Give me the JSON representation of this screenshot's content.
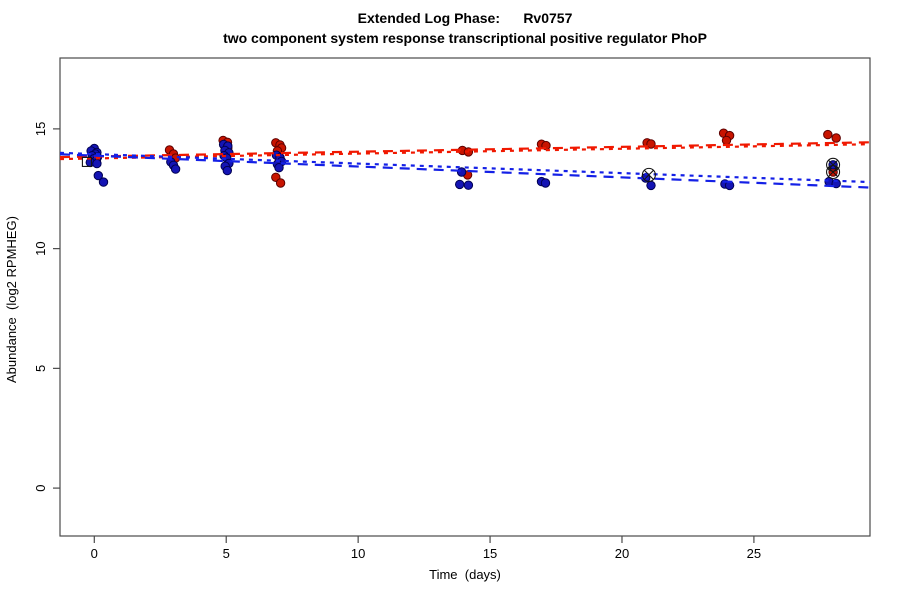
{
  "header": {
    "title_line1": "Extended Log Phase:      Rv0757",
    "title_line2": "two component system response transcriptional positive regulator PhoP"
  },
  "chart_data": {
    "type": "scatter",
    "title": "Extended Log Phase: Rv0757",
    "subtitle": "two component system response transcriptional positive regulator PhoP",
    "xlabel": "Time  (days)",
    "ylabel": "Abundance  (log2 RPMHEG)",
    "xlim": [
      -1.3,
      29.4
    ],
    "ylim": [
      -2.0,
      17.96
    ],
    "x_ticks": [
      0,
      5,
      10,
      15,
      20,
      25
    ],
    "y_ticks": [
      0,
      5,
      10,
      15
    ],
    "grid": "off",
    "legend": "none",
    "colors": {
      "red_fill": "#c81400",
      "red_edge": "#5c0000",
      "blue_fill": "#1414b4",
      "blue_edge": "#000050",
      "red_line": "#f01800",
      "blue_line": "#1420e6",
      "outlier_stroke": "#141414",
      "box": "#4a4a4a"
    },
    "series": [
      {
        "name": "condition-red",
        "marker": "circle",
        "color_key": "red",
        "points": [
          [
            2.85,
            14.12
          ],
          [
            3.0,
            13.95
          ],
          [
            3.08,
            13.78
          ],
          [
            4.88,
            14.52
          ],
          [
            5.05,
            14.44
          ],
          [
            4.94,
            14.3
          ],
          [
            5.06,
            14.2
          ],
          [
            6.88,
            14.42
          ],
          [
            7.04,
            14.33
          ],
          [
            7.1,
            14.2
          ],
          [
            6.94,
            14.08
          ],
          [
            7.0,
            13.62
          ],
          [
            6.88,
            12.98
          ],
          [
            7.06,
            12.74
          ],
          [
            13.95,
            14.1
          ],
          [
            14.18,
            14.04
          ],
          [
            14.15,
            13.08
          ],
          [
            16.95,
            14.36
          ],
          [
            17.12,
            14.3
          ],
          [
            20.95,
            14.42
          ],
          [
            21.1,
            14.37
          ],
          [
            23.85,
            14.82
          ],
          [
            24.08,
            14.72
          ],
          [
            23.96,
            14.52
          ],
          [
            27.8,
            14.76
          ],
          [
            28.12,
            14.62
          ],
          [
            28.0,
            13.2
          ]
        ]
      },
      {
        "name": "condition-blue",
        "marker": "circle",
        "color_key": "blue",
        "points": [
          [
            0.0,
            14.18
          ],
          [
            -0.12,
            14.08
          ],
          [
            0.1,
            14.02
          ],
          [
            0.04,
            13.95
          ],
          [
            -0.08,
            13.88
          ],
          [
            0.12,
            13.82
          ],
          [
            -0.02,
            13.75
          ],
          [
            0.08,
            13.68
          ],
          [
            -0.15,
            13.6
          ],
          [
            0.1,
            13.55
          ],
          [
            0.15,
            13.05
          ],
          [
            0.35,
            12.78
          ],
          [
            2.9,
            13.62
          ],
          [
            3.0,
            13.48
          ],
          [
            3.08,
            13.32
          ],
          [
            4.9,
            14.35
          ],
          [
            5.06,
            14.28
          ],
          [
            4.95,
            14.1
          ],
          [
            5.1,
            14.0
          ],
          [
            4.92,
            13.88
          ],
          [
            5.02,
            13.78
          ],
          [
            5.1,
            13.56
          ],
          [
            4.96,
            13.44
          ],
          [
            5.04,
            13.26
          ],
          [
            6.9,
            13.9
          ],
          [
            7.04,
            13.8
          ],
          [
            7.1,
            13.64
          ],
          [
            6.94,
            13.52
          ],
          [
            7.0,
            13.38
          ],
          [
            13.92,
            13.2
          ],
          [
            13.85,
            12.68
          ],
          [
            14.18,
            12.65
          ],
          [
            16.95,
            12.8
          ],
          [
            17.1,
            12.74
          ],
          [
            20.9,
            12.95
          ],
          [
            21.1,
            12.64
          ],
          [
            23.9,
            12.7
          ],
          [
            24.08,
            12.64
          ],
          [
            27.85,
            12.8
          ],
          [
            28.12,
            12.72
          ],
          [
            28.0,
            13.5
          ]
        ]
      }
    ],
    "outlier_markers": {
      "circle_x": [
        [
          21.02,
          13.08
        ],
        [
          28.0,
          13.5
        ],
        [
          28.0,
          13.2
        ]
      ],
      "square": [
        [
          -0.28,
          13.62
        ]
      ]
    },
    "trend_lines": [
      {
        "name": "red-fit-long-dash",
        "color_key": "red",
        "dash": "10,7",
        "x1": -1.3,
        "y1": 13.82,
        "x2": 29.4,
        "y2": 14.44
      },
      {
        "name": "red-fit-short-dash",
        "color_key": "red",
        "dash": "4,5",
        "x1": -1.3,
        "y1": 13.74,
        "x2": 29.4,
        "y2": 14.36
      },
      {
        "name": "blue-fit-short-dash",
        "color_key": "blue",
        "dash": "4,5",
        "x1": -1.3,
        "y1": 14.0,
        "x2": 29.4,
        "y2": 12.78
      },
      {
        "name": "blue-fit-long-dash",
        "color_key": "blue",
        "dash": "10,7",
        "x1": -1.3,
        "y1": 13.94,
        "x2": 29.4,
        "y2": 12.55
      }
    ]
  }
}
